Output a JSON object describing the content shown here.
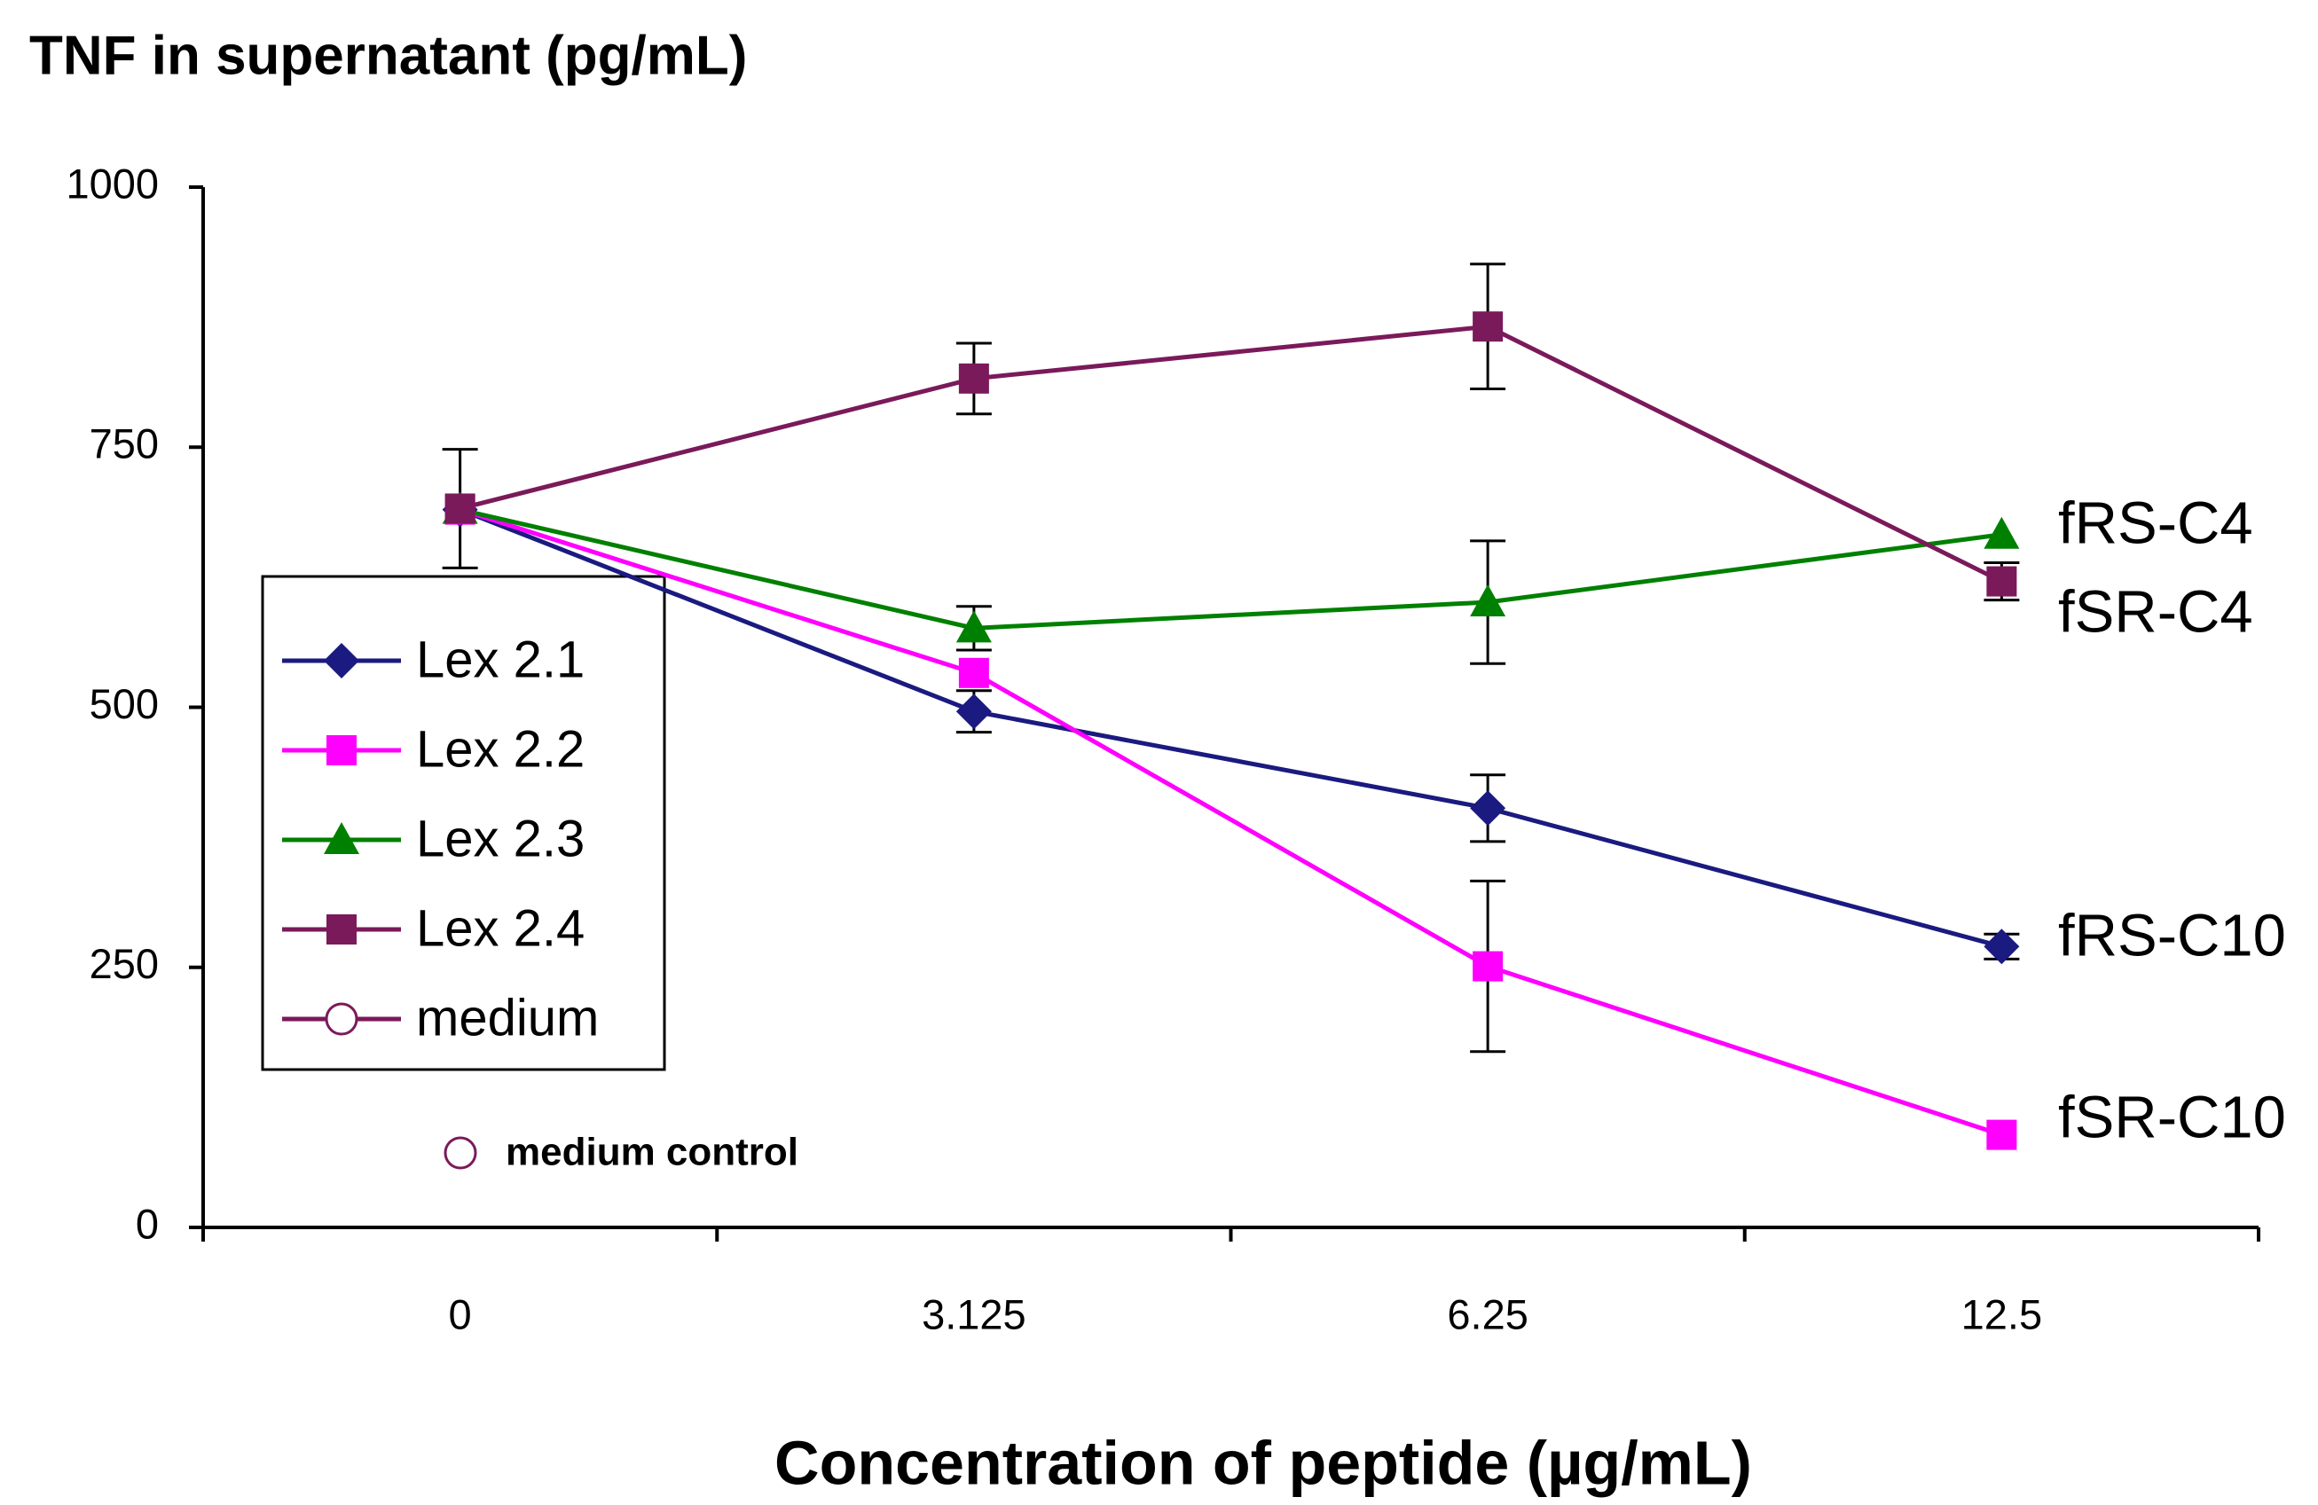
{
  "chart_data": {
    "type": "line",
    "title": "TNF in supernatant (pg/mL)",
    "x_label": "Concentration of peptide (µg/mL)",
    "categories": [
      "0",
      "3.125",
      "6.25",
      "12.5"
    ],
    "series": [
      {
        "name": "Lex 2.1",
        "color": "#1a1a80",
        "marker": "diamond",
        "values": [
          690,
          496,
          403,
          270
        ],
        "errors": [
          null,
          20,
          32,
          12
        ]
      },
      {
        "name": "Lex 2.2",
        "color": "#ff00ff",
        "marker": "square",
        "values": [
          690,
          533,
          251,
          89
        ],
        "errors": [
          null,
          null,
          82,
          null
        ]
      },
      {
        "name": "Lex 2.3",
        "color": "#008000",
        "marker": "triangle",
        "values": [
          690,
          576,
          601,
          666
        ],
        "errors": [
          null,
          21,
          59,
          null
        ]
      },
      {
        "name": "Lex 2.4",
        "color": "#7a1a5a",
        "marker": "square",
        "values": [
          691,
          816,
          866,
          621
        ],
        "errors": [
          57,
          34,
          60,
          18
        ]
      },
      {
        "name": "medium",
        "color": "#7a1a5a",
        "marker": "circle",
        "values": [
          null,
          null,
          null,
          null
        ]
      }
    ],
    "annotations": [
      "medium control",
      "fRS-C4",
      "fSR-C4",
      "fRS-C10",
      "fSR-C10"
    ],
    "ylim": [
      0,
      1000
    ],
    "yticks": [
      0,
      250,
      500,
      750,
      1000
    ]
  }
}
